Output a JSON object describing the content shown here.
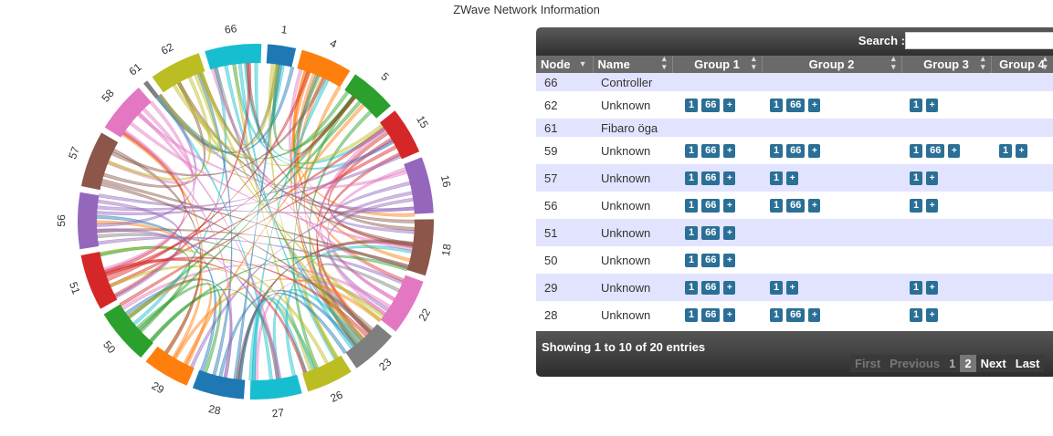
{
  "page": {
    "title": "ZWave Network Information"
  },
  "chart_data": {
    "type": "chord",
    "groups": [
      {
        "label": "66",
        "color": "#17becf",
        "weight": 12
      },
      {
        "label": "1",
        "color": "#1f77b4",
        "weight": 6
      },
      {
        "label": "4",
        "color": "#ff7f0e",
        "weight": 11
      },
      {
        "label": "5",
        "color": "#2ca02c",
        "weight": 10
      },
      {
        "label": "15",
        "color": "#d62728",
        "weight": 10
      },
      {
        "label": "16",
        "color": "#9467bd",
        "weight": 12
      },
      {
        "label": "18",
        "color": "#8c564b",
        "weight": 12
      },
      {
        "label": "22",
        "color": "#e377c2",
        "weight": 12
      },
      {
        "label": "23",
        "color": "#7f7f7f",
        "weight": 10
      },
      {
        "label": "26",
        "color": "#bcbd22",
        "weight": 10
      },
      {
        "label": "27",
        "color": "#17becf",
        "weight": 11
      },
      {
        "label": "28",
        "color": "#1f77b4",
        "weight": 11
      },
      {
        "label": "29",
        "color": "#ff7f0e",
        "weight": 10
      },
      {
        "label": "50",
        "color": "#2ca02c",
        "weight": 12
      },
      {
        "label": "51",
        "color": "#d62728",
        "weight": 12
      },
      {
        "label": "56",
        "color": "#9467bd",
        "weight": 12
      },
      {
        "label": "57",
        "color": "#8c564b",
        "weight": 12
      },
      {
        "label": "58",
        "color": "#e377c2",
        "weight": 11
      },
      {
        "label": "61",
        "color": "#7f7f7f",
        "weight": 1
      },
      {
        "label": "62",
        "color": "#bcbd22",
        "weight": 11
      }
    ]
  },
  "table": {
    "search_label": "Search :",
    "search_value": "",
    "columns": [
      "Node",
      "Name",
      "Group 1",
      "Group 2",
      "Group 3",
      "Group 4"
    ],
    "rows": [
      {
        "node": "66",
        "name": "Controller",
        "groups": [
          [],
          [],
          [],
          []
        ]
      },
      {
        "node": "62",
        "name": "Unknown",
        "groups": [
          [
            "1",
            "66"
          ],
          [
            "1",
            "66"
          ],
          [
            "1"
          ],
          []
        ]
      },
      {
        "node": "61",
        "name": "Fibaro öga",
        "groups": [
          [],
          [],
          [],
          []
        ]
      },
      {
        "node": "59",
        "name": "Unknown",
        "groups": [
          [
            "1",
            "66"
          ],
          [
            "1",
            "66"
          ],
          [
            "1",
            "66"
          ],
          [
            "1"
          ]
        ]
      },
      {
        "node": "57",
        "name": "Unknown",
        "groups": [
          [
            "1",
            "66"
          ],
          [
            "1"
          ],
          [
            "1"
          ],
          []
        ]
      },
      {
        "node": "56",
        "name": "Unknown",
        "groups": [
          [
            "1",
            "66"
          ],
          [
            "1",
            "66"
          ],
          [
            "1"
          ],
          []
        ]
      },
      {
        "node": "51",
        "name": "Unknown",
        "groups": [
          [
            "1",
            "66"
          ],
          null,
          null,
          null
        ]
      },
      {
        "node": "50",
        "name": "Unknown",
        "groups": [
          [
            "1",
            "66"
          ],
          null,
          null,
          null
        ]
      },
      {
        "node": "29",
        "name": "Unknown",
        "groups": [
          [
            "1",
            "66"
          ],
          [
            "1"
          ],
          [
            "1"
          ],
          []
        ]
      },
      {
        "node": "28",
        "name": "Unknown",
        "groups": [
          [
            "1",
            "66"
          ],
          [
            "1",
            "66"
          ],
          [
            "1"
          ],
          []
        ]
      }
    ],
    "add_label": "+",
    "info": "Showing 1 to 10 of 20 entries",
    "pager": {
      "first": "First",
      "previous": "Previous",
      "pages": [
        "1",
        "2"
      ],
      "current": "2",
      "next": "Next",
      "last": "Last"
    }
  },
  "icons": {
    "sort_both": "sort-both-icon",
    "sort_desc": "sort-desc-icon"
  }
}
